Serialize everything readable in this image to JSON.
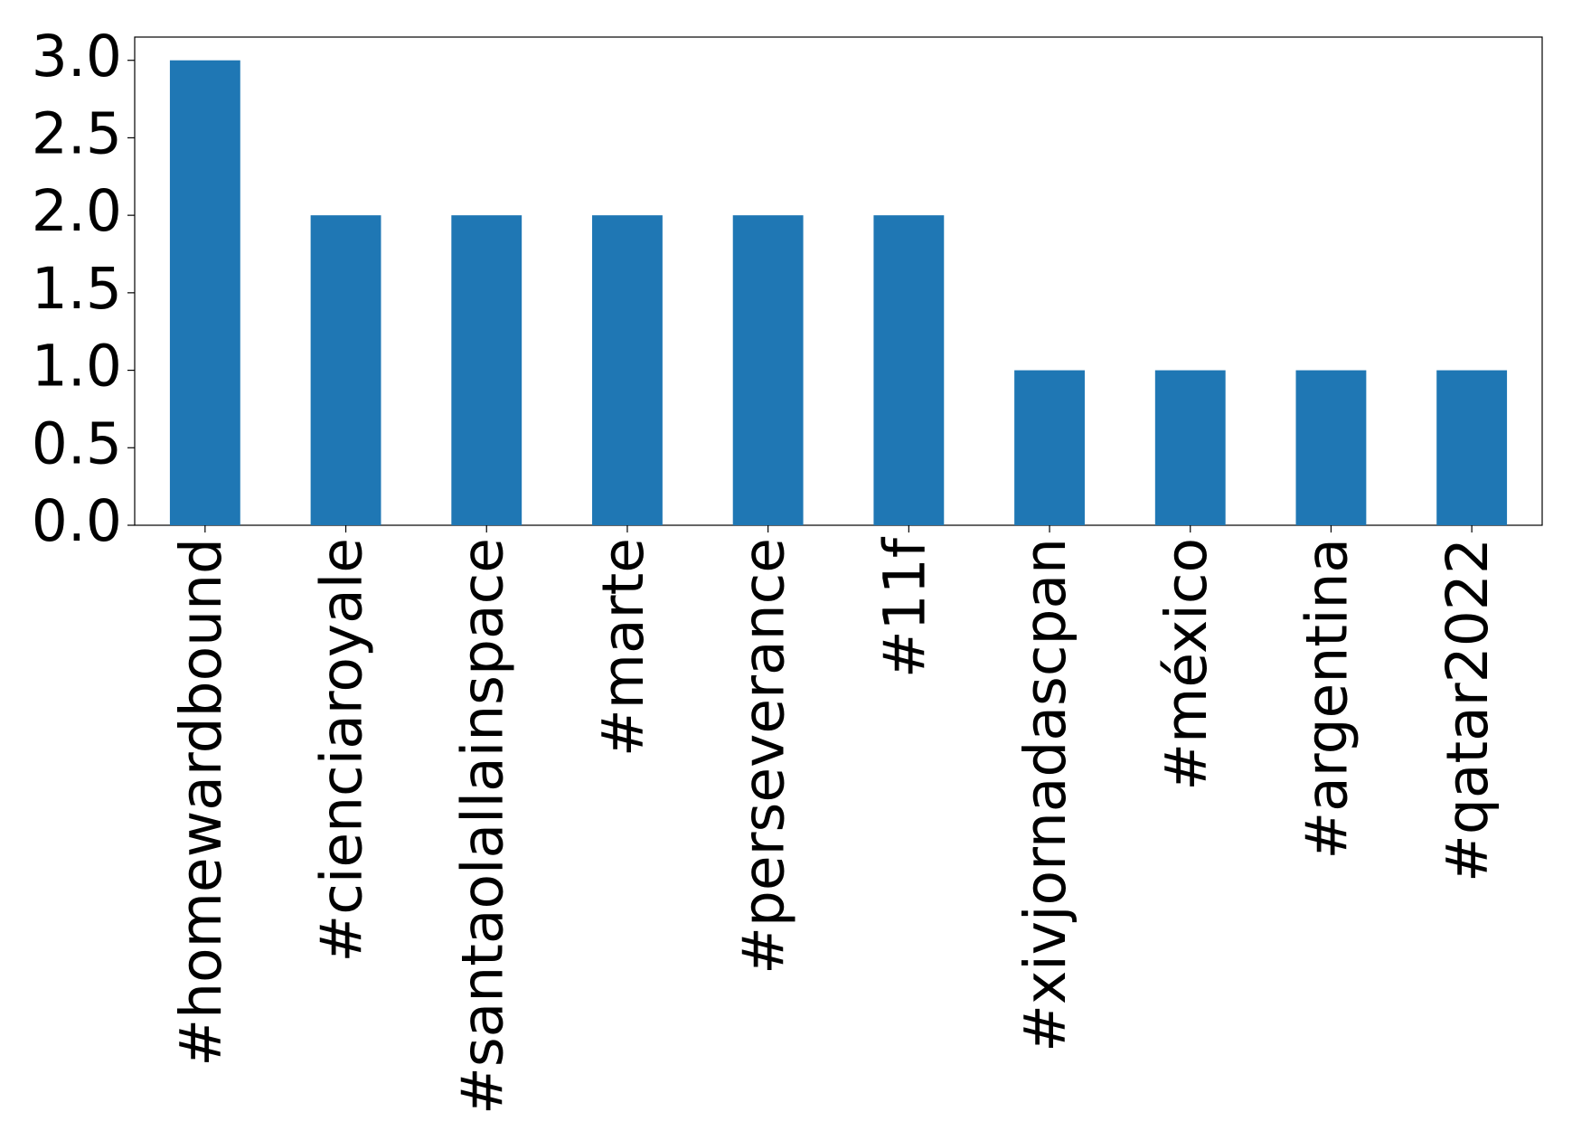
{
  "chart_data": {
    "type": "bar",
    "categories": [
      "#homewardbound",
      "#cienciaroyale",
      "#santaolallainspace",
      "#marte",
      "#perseverance",
      "#11f",
      "#xivjornadascpan",
      "#méxico",
      "#argentina",
      "#qatar2022"
    ],
    "values": [
      3,
      2,
      2,
      2,
      2,
      2,
      1,
      1,
      1,
      1
    ],
    "color": "#1f77b4",
    "ylim": [
      0,
      3.15
    ],
    "yticks": [
      {
        "value": 0,
        "label": "0.0"
      },
      0.5,
      {
        "value": 1,
        "label": "1.0"
      },
      1.5,
      {
        "value": 2,
        "label": "2.0"
      },
      2.5,
      {
        "value": 3,
        "label": "3.0"
      }
    ],
    "grid": false
  }
}
